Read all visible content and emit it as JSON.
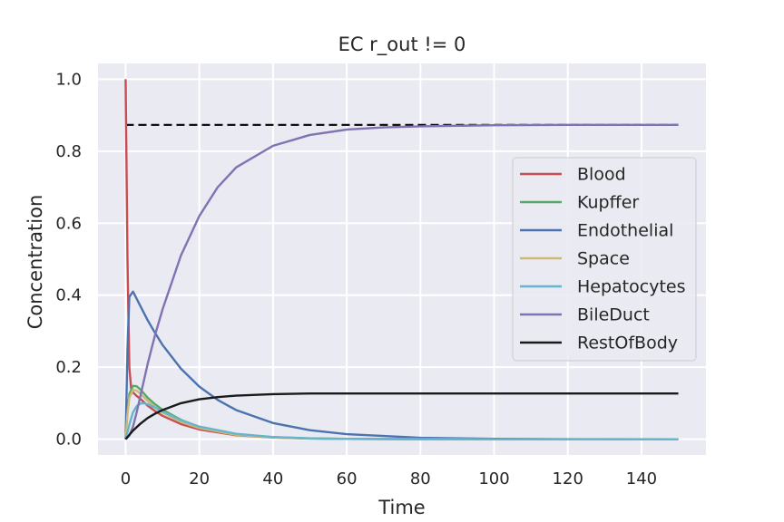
{
  "chart_data": {
    "type": "line",
    "title": "EC r_out != 0",
    "xlabel": "Time",
    "ylabel": "Concentration",
    "xlim": [
      -7.5,
      157.5
    ],
    "ylim": [
      -0.0437,
      1.0437
    ],
    "xticks": [
      0,
      20,
      40,
      60,
      80,
      100,
      120,
      140
    ],
    "yticks": [
      0.0,
      0.2,
      0.4,
      0.6,
      0.8,
      1.0
    ],
    "xtick_labels": [
      "0",
      "20",
      "40",
      "60",
      "80",
      "100",
      "120",
      "140"
    ],
    "ytick_labels": [
      "0.0",
      "0.2",
      "0.4",
      "0.6",
      "0.8",
      "1.0"
    ],
    "grid": true,
    "legend_position": "right",
    "series": [
      {
        "name": "Blood",
        "color": "#c44e52",
        "x": [
          0,
          0.5,
          1,
          1.5,
          2,
          3,
          4,
          6,
          8,
          10,
          15,
          20,
          30,
          40,
          50,
          60,
          80,
          100,
          150
        ],
        "y": [
          1.0,
          0.5,
          0.2,
          0.14,
          0.13,
          0.12,
          0.112,
          0.093,
          0.078,
          0.065,
          0.042,
          0.027,
          0.011,
          0.0045,
          0.0018,
          0.0008,
          0.0001,
          0.0,
          0.0
        ]
      },
      {
        "name": "Kupffer",
        "color": "#55a868",
        "x": [
          0,
          0.5,
          1,
          2,
          3,
          4,
          6,
          8,
          10,
          15,
          20,
          30,
          40,
          50,
          60,
          80,
          100,
          150
        ],
        "y": [
          0.0,
          0.08,
          0.125,
          0.148,
          0.147,
          0.138,
          0.115,
          0.097,
          0.082,
          0.054,
          0.034,
          0.014,
          0.0057,
          0.0023,
          0.0009,
          0.0001,
          0.0,
          0.0
        ]
      },
      {
        "name": "Endothelial",
        "color": "#4c72b0",
        "x": [
          0,
          0.5,
          1,
          2,
          4,
          6,
          8,
          10,
          15,
          20,
          25,
          30,
          40,
          50,
          60,
          80,
          100,
          120,
          150
        ],
        "y": [
          0.0,
          0.25,
          0.395,
          0.41,
          0.37,
          0.33,
          0.295,
          0.262,
          0.196,
          0.146,
          0.109,
          0.081,
          0.045,
          0.025,
          0.014,
          0.004,
          0.0012,
          0.0003,
          0.0
        ]
      },
      {
        "name": "Space",
        "color": "#ccb974",
        "x": [
          0,
          0.5,
          1,
          2,
          3,
          4,
          6,
          8,
          10,
          15,
          20,
          30,
          40,
          50,
          60,
          80,
          100,
          150
        ],
        "y": [
          0.0,
          0.07,
          0.115,
          0.137,
          0.135,
          0.126,
          0.106,
          0.088,
          0.074,
          0.048,
          0.031,
          0.012,
          0.005,
          0.002,
          0.0008,
          0.0001,
          0.0,
          0.0
        ]
      },
      {
        "name": "Hepatocytes",
        "color": "#64b5cd",
        "x": [
          0,
          1,
          2,
          3,
          4,
          5,
          6,
          8,
          10,
          15,
          20,
          30,
          40,
          50,
          60,
          80,
          100,
          150
        ],
        "y": [
          0.0,
          0.04,
          0.075,
          0.092,
          0.099,
          0.1,
          0.097,
          0.088,
          0.077,
          0.053,
          0.035,
          0.015,
          0.006,
          0.0025,
          0.001,
          0.0002,
          0.0,
          0.0
        ]
      },
      {
        "name": "BileDuct",
        "color": "#8172b2",
        "x": [
          0,
          1,
          2,
          3,
          4,
          6,
          8,
          10,
          15,
          20,
          25,
          30,
          40,
          50,
          60,
          70,
          80,
          100,
          120,
          150
        ],
        "y": [
          0.0,
          0.01,
          0.035,
          0.075,
          0.12,
          0.21,
          0.29,
          0.36,
          0.51,
          0.62,
          0.7,
          0.755,
          0.815,
          0.845,
          0.86,
          0.866,
          0.869,
          0.872,
          0.873,
          0.873
        ]
      },
      {
        "name": "RestOfBody",
        "color": "#1a1a1a",
        "x": [
          0,
          1,
          2,
          4,
          6,
          8,
          10,
          15,
          20,
          25,
          30,
          40,
          50,
          60,
          80,
          100,
          150
        ],
        "y": [
          0.0,
          0.012,
          0.024,
          0.043,
          0.059,
          0.071,
          0.081,
          0.1,
          0.111,
          0.117,
          0.121,
          0.125,
          0.127,
          0.127,
          0.127,
          0.127,
          0.127
        ]
      }
    ],
    "reference_line": {
      "y": 0.873,
      "x_start": 0,
      "x_end": 150,
      "style": "dashed",
      "color": "#000000"
    }
  }
}
